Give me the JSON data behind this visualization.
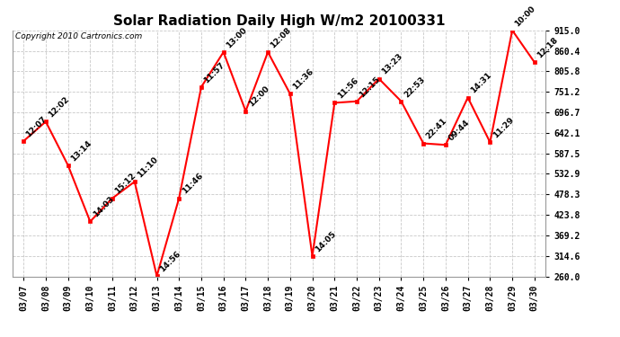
{
  "title": "Solar Radiation Daily High W/m2 20100331",
  "copyright": "Copyright 2010 Cartronics.com",
  "dates": [
    "03/07",
    "03/08",
    "03/09",
    "03/10",
    "03/11",
    "03/12",
    "03/13",
    "03/14",
    "03/15",
    "03/16",
    "03/17",
    "03/18",
    "03/19",
    "03/20",
    "03/21",
    "03/22",
    "03/23",
    "03/24",
    "03/25",
    "03/26",
    "03/27",
    "03/28",
    "03/29",
    "03/30"
  ],
  "values": [
    620,
    672,
    556,
    406,
    468,
    512,
    261,
    468,
    764,
    857,
    700,
    857,
    746,
    314,
    722,
    726,
    786,
    726,
    614,
    610,
    736,
    617,
    915,
    830
  ],
  "labels": [
    "12:07",
    "12:02",
    "13:14",
    "14:03",
    "15:12",
    "11:10",
    "14:56",
    "11:46",
    "11:57",
    "13:00",
    "12:00",
    "12:08",
    "11:36",
    "14:05",
    "11:56",
    "12:15",
    "13:23",
    "22:53",
    "22:41",
    "09:44",
    "14:31",
    "11:29",
    "10:00",
    "12:18"
  ],
  "ylim_min": 260.0,
  "ylim_max": 915.0,
  "yticks": [
    260.0,
    314.6,
    369.2,
    423.8,
    478.3,
    532.9,
    587.5,
    642.1,
    696.7,
    751.2,
    805.8,
    860.4,
    915.0
  ],
  "line_color": "red",
  "marker_color": "red",
  "background_color": "#ffffff",
  "grid_color": "#bbbbbb",
  "title_fontsize": 11,
  "label_fontsize": 6.5,
  "tick_fontsize": 7
}
